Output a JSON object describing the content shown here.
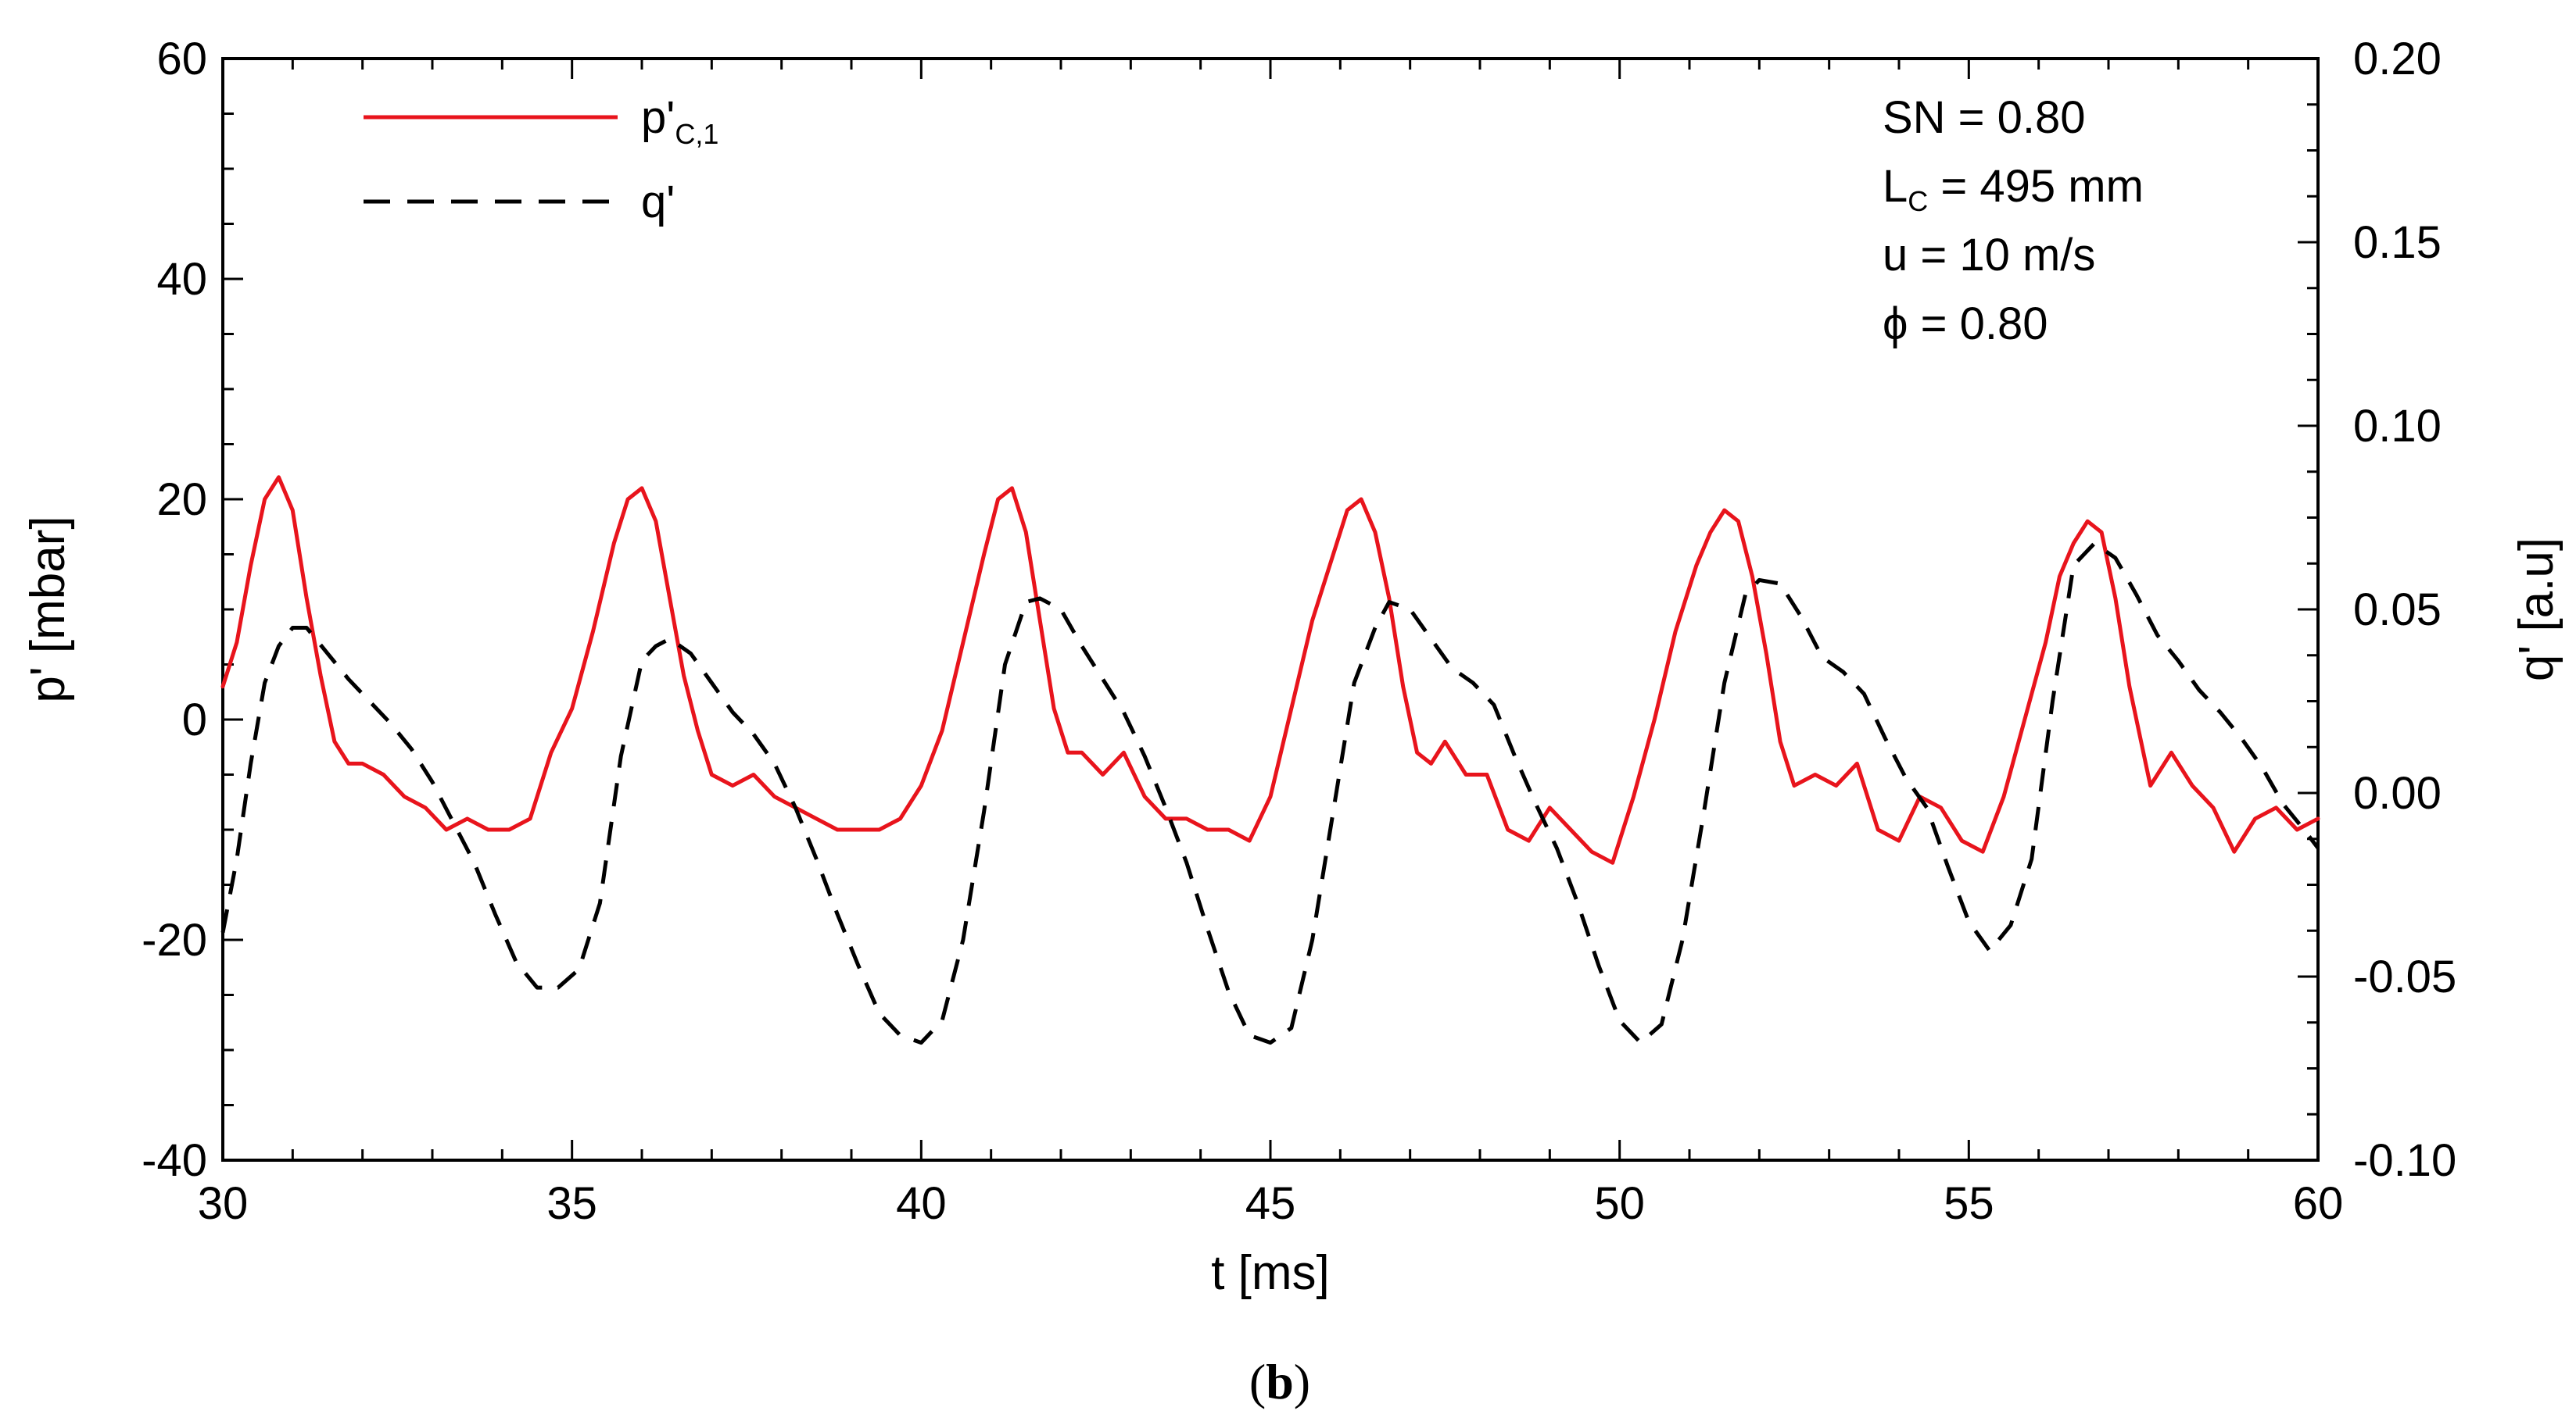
{
  "chart_data": {
    "type": "line",
    "xlabel": "t [ms]",
    "ylabel_left": "p' [mbar]",
    "ylabel_right": "q' [a.u]",
    "xlim": [
      30,
      60
    ],
    "ylim_left": [
      -40,
      60
    ],
    "ylim_right": [
      -0.1,
      0.2
    ],
    "x_ticks": [
      "30",
      "35",
      "40",
      "45",
      "50",
      "55",
      "60"
    ],
    "y_left_ticks": [
      "-40",
      "-20",
      "0",
      "20",
      "40",
      "60"
    ],
    "y_right_ticks": [
      "-0.10",
      "-0.05",
      "0.00",
      "0.05",
      "0.10",
      "0.15",
      "0.20"
    ],
    "grid": false,
    "legend_position": "top-left",
    "annotations": {
      "sn": "SN = 0.80",
      "lc_main": "L",
      "lc_sub": "C",
      "lc_rest": " = 495 mm",
      "u": "u = 10 m/s",
      "phi": "ϕ = 0.80"
    },
    "caption_open": "(",
    "caption_letter": "b",
    "caption_close": ")",
    "series": [
      {
        "name": "p'C,1",
        "legend_main": "p'",
        "legend_sub": "C,1",
        "axis": "left",
        "color": "#e8141c",
        "dash": "solid",
        "x": [
          30.0,
          30.2,
          30.4,
          30.6,
          30.8,
          31.0,
          31.2,
          31.4,
          31.6,
          31.8,
          32.0,
          32.3,
          32.6,
          32.9,
          33.2,
          33.5,
          33.8,
          34.1,
          34.4,
          34.7,
          35.0,
          35.3,
          35.6,
          35.8,
          36.0,
          36.2,
          36.4,
          36.6,
          36.8,
          37.0,
          37.3,
          37.6,
          37.9,
          38.2,
          38.5,
          38.8,
          39.1,
          39.4,
          39.7,
          40.0,
          40.3,
          40.6,
          40.9,
          41.1,
          41.3,
          41.5,
          41.7,
          41.9,
          42.1,
          42.3,
          42.6,
          42.9,
          43.2,
          43.5,
          43.8,
          44.1,
          44.4,
          44.7,
          45.0,
          45.3,
          45.6,
          45.9,
          46.1,
          46.3,
          46.5,
          46.7,
          46.9,
          47.1,
          47.3,
          47.5,
          47.8,
          48.1,
          48.4,
          48.7,
          49.0,
          49.3,
          49.6,
          49.9,
          50.2,
          50.5,
          50.8,
          51.1,
          51.3,
          51.5,
          51.7,
          51.9,
          52.1,
          52.3,
          52.5,
          52.8,
          53.1,
          53.4,
          53.7,
          54.0,
          54.3,
          54.6,
          54.9,
          55.2,
          55.5,
          55.8,
          56.1,
          56.3,
          56.5,
          56.7,
          56.9,
          57.1,
          57.3,
          57.6,
          57.9,
          58.2,
          58.5,
          58.8,
          59.1,
          59.4,
          59.7,
          60.0
        ],
        "y": [
          3,
          7,
          14,
          20,
          22,
          19,
          11,
          4,
          -2,
          -4,
          -4,
          -5,
          -7,
          -8,
          -10,
          -9,
          -10,
          -10,
          -9,
          -3,
          1,
          8,
          16,
          20,
          21,
          18,
          11,
          4,
          -1,
          -5,
          -6,
          -5,
          -7,
          -8,
          -9,
          -10,
          -10,
          -10,
          -9,
          -6,
          -1,
          7,
          15,
          20,
          21,
          17,
          9,
          1,
          -3,
          -3,
          -5,
          -3,
          -7,
          -9,
          -9,
          -10,
          -10,
          -11,
          -7,
          1,
          9,
          15,
          19,
          20,
          17,
          11,
          3,
          -3,
          -4,
          -2,
          -5,
          -5,
          -10,
          -11,
          -8,
          -10,
          -12,
          -13,
          -7,
          0,
          8,
          14,
          17,
          19,
          18,
          13,
          6,
          -2,
          -6,
          -5,
          -6,
          -4,
          -10,
          -11,
          -7,
          -8,
          -11,
          -12,
          -7,
          0,
          7,
          13,
          16,
          18,
          17,
          11,
          3,
          -6,
          -3,
          -6,
          -8,
          -12,
          -9,
          -8,
          -10,
          -9
        ]
      },
      {
        "name": "q'",
        "legend_main": "q'",
        "axis": "right",
        "color": "#000000",
        "dash": "dashed",
        "x": [
          30.0,
          30.2,
          30.4,
          30.6,
          30.8,
          31.0,
          31.2,
          31.5,
          31.8,
          32.1,
          32.4,
          32.7,
          33.0,
          33.3,
          33.6,
          33.9,
          34.2,
          34.5,
          34.8,
          35.1,
          35.4,
          35.7,
          36.0,
          36.2,
          36.4,
          36.7,
          37.0,
          37.3,
          37.6,
          37.9,
          38.2,
          38.5,
          38.8,
          39.1,
          39.4,
          39.7,
          40.0,
          40.3,
          40.6,
          40.9,
          41.2,
          41.5,
          41.7,
          42.0,
          42.3,
          42.6,
          42.9,
          43.2,
          43.5,
          43.8,
          44.1,
          44.4,
          44.7,
          45.0,
          45.3,
          45.6,
          45.9,
          46.2,
          46.5,
          46.7,
          47.0,
          47.3,
          47.6,
          47.9,
          48.2,
          48.5,
          48.8,
          49.1,
          49.4,
          49.7,
          50.0,
          50.3,
          50.6,
          50.9,
          51.2,
          51.5,
          51.8,
          52.0,
          52.3,
          52.6,
          52.9,
          53.2,
          53.5,
          53.8,
          54.1,
          54.4,
          54.7,
          55.0,
          55.3,
          55.6,
          55.9,
          56.2,
          56.5,
          56.8,
          57.1,
          57.4,
          57.7,
          58.0,
          58.3,
          58.6,
          58.9,
          59.2,
          59.5,
          59.8,
          60.0
        ],
        "y": [
          -0.038,
          -0.018,
          0.008,
          0.03,
          0.04,
          0.045,
          0.045,
          0.038,
          0.031,
          0.025,
          0.019,
          0.012,
          0.003,
          -0.008,
          -0.019,
          -0.033,
          -0.046,
          -0.053,
          -0.053,
          -0.048,
          -0.03,
          0.01,
          0.036,
          0.04,
          0.042,
          0.038,
          0.03,
          0.022,
          0.016,
          0.008,
          -0.004,
          -0.018,
          -0.033,
          -0.047,
          -0.06,
          -0.066,
          -0.068,
          -0.062,
          -0.04,
          -0.005,
          0.035,
          0.052,
          0.053,
          0.05,
          0.04,
          0.031,
          0.022,
          0.01,
          -0.004,
          -0.019,
          -0.037,
          -0.054,
          -0.066,
          -0.068,
          -0.064,
          -0.04,
          -0.005,
          0.03,
          0.045,
          0.052,
          0.05,
          0.042,
          0.034,
          0.03,
          0.024,
          0.01,
          -0.003,
          -0.015,
          -0.03,
          -0.047,
          -0.062,
          -0.068,
          -0.063,
          -0.04,
          -0.006,
          0.03,
          0.054,
          0.058,
          0.057,
          0.048,
          0.037,
          0.033,
          0.027,
          0.015,
          0.004,
          -0.004,
          -0.02,
          -0.035,
          -0.043,
          -0.036,
          -0.018,
          0.025,
          0.062,
          0.068,
          0.064,
          0.054,
          0.043,
          0.036,
          0.028,
          0.022,
          0.015,
          0.007,
          -0.003,
          -0.01,
          -0.015
        ]
      }
    ]
  }
}
